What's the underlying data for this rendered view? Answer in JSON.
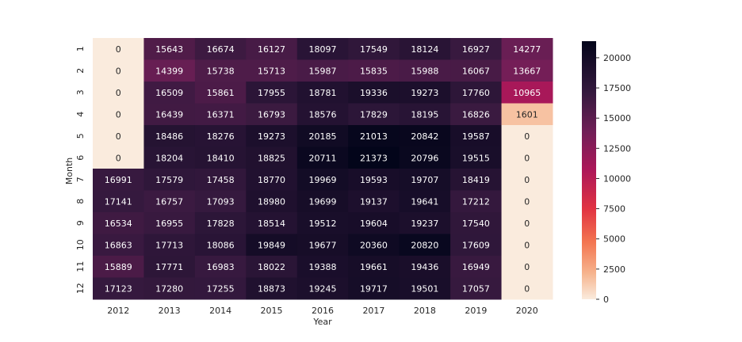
{
  "chart_data": {
    "type": "heatmap",
    "xlabel": "Year",
    "ylabel": "Month",
    "x_categories": [
      "2012",
      "2013",
      "2014",
      "2015",
      "2016",
      "2017",
      "2018",
      "2019",
      "2020"
    ],
    "y_categories": [
      "1",
      "2",
      "3",
      "4",
      "5",
      "6",
      "7",
      "8",
      "9",
      "10",
      "11",
      "12"
    ],
    "values": [
      [
        0,
        15643,
        16674,
        16127,
        18097,
        17549,
        18124,
        16927,
        14277
      ],
      [
        0,
        14399,
        15738,
        15713,
        15987,
        15835,
        15988,
        16067,
        13667
      ],
      [
        0,
        16509,
        15861,
        17955,
        18781,
        19336,
        19273,
        17760,
        10965
      ],
      [
        0,
        16439,
        16371,
        16793,
        18576,
        17829,
        18195,
        16826,
        1601
      ],
      [
        0,
        18486,
        18276,
        19273,
        20185,
        21013,
        20842,
        19587,
        0
      ],
      [
        0,
        18204,
        18410,
        18825,
        20711,
        21373,
        20796,
        19515,
        0
      ],
      [
        16991,
        17579,
        17458,
        18770,
        19969,
        19593,
        19707,
        18419,
        0
      ],
      [
        17141,
        16757,
        17093,
        18980,
        19699,
        19137,
        19641,
        17212,
        0
      ],
      [
        16534,
        16955,
        17828,
        18514,
        19512,
        19604,
        19237,
        17540,
        0
      ],
      [
        16863,
        17713,
        18086,
        19849,
        19677,
        20360,
        20820,
        17609,
        0
      ],
      [
        15889,
        17771,
        16983,
        18022,
        19388,
        19661,
        19436,
        16949,
        0
      ],
      [
        17123,
        17280,
        17255,
        18873,
        19245,
        19717,
        19501,
        17057,
        0
      ]
    ],
    "colorbar": {
      "range": [
        0,
        21373
      ],
      "ticks": [
        0,
        2500,
        5000,
        7500,
        10000,
        12500,
        15000,
        17500,
        20000
      ],
      "colormap": "rocket_r"
    },
    "grid": false
  }
}
